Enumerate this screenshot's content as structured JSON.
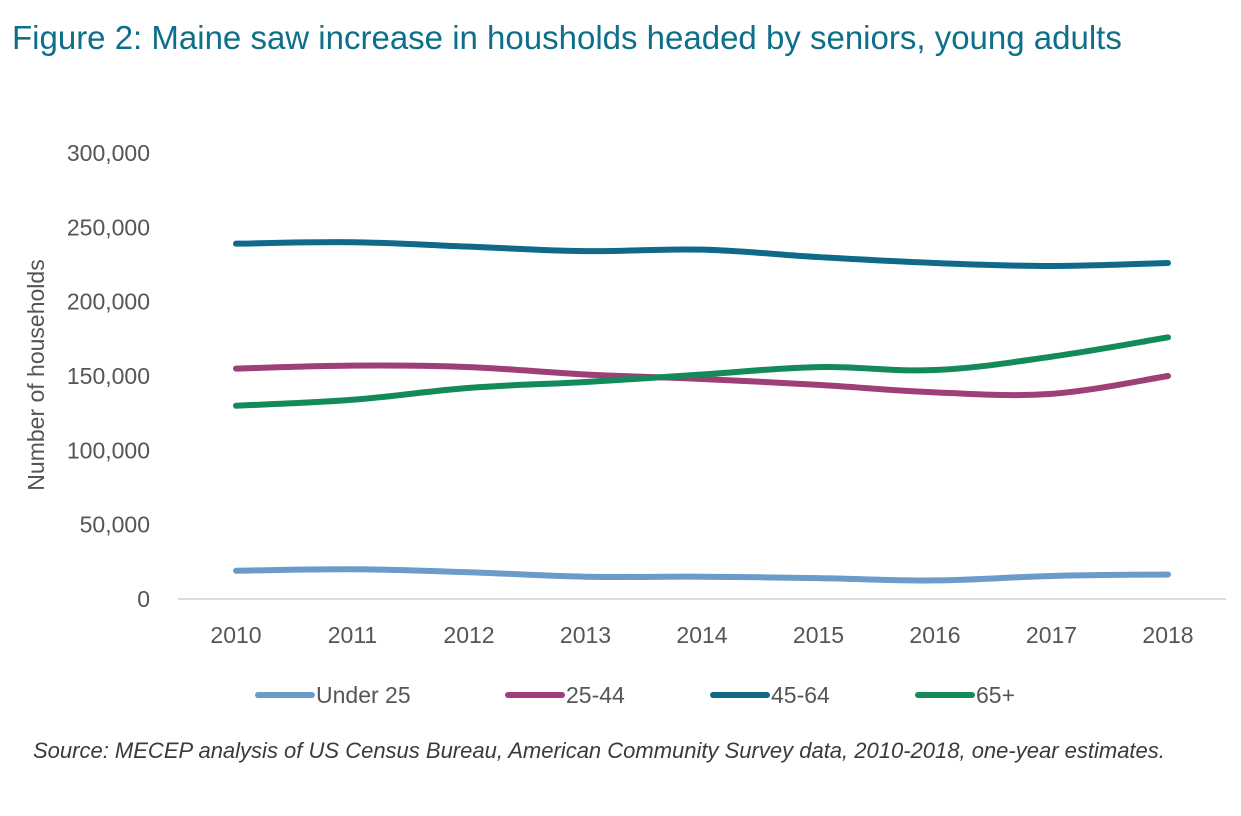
{
  "title": "Figure 2: Maine saw increase in housholds headed by seniors, young adults",
  "source": "Source: MECEP analysis of US Census Bureau, American Community Survey data, 2010-2018, one-year estimates.",
  "chart_data": {
    "type": "line",
    "title": "Figure 2: Maine saw increase in housholds headed by seniors, young adults",
    "xlabel": "",
    "ylabel": "Number of households",
    "ylim": [
      0,
      300000
    ],
    "yticks": [
      0,
      50000,
      100000,
      150000,
      200000,
      250000,
      300000
    ],
    "ytick_labels": [
      "0",
      "50,000",
      "100,000",
      "150,000",
      "200,000",
      "250,000",
      "300,000"
    ],
    "categories": [
      "2010",
      "2011",
      "2012",
      "2013",
      "2014",
      "2015",
      "2016",
      "2017",
      "2018"
    ],
    "grid": false,
    "legend_position": "bottom",
    "series": [
      {
        "name": "Under 25",
        "color": "#6a9bc9",
        "values": [
          19000,
          20000,
          18000,
          15000,
          15000,
          14000,
          12500,
          15500,
          16500
        ]
      },
      {
        "name": "25-44",
        "color": "#9e3f78",
        "values": [
          155000,
          157000,
          156000,
          151000,
          148000,
          144000,
          139000,
          138000,
          150000
        ]
      },
      {
        "name": "45-64",
        "color": "#0f6a8a",
        "values": [
          239000,
          240000,
          237000,
          234000,
          235000,
          230000,
          226000,
          224000,
          226000
        ]
      },
      {
        "name": "65+",
        "color": "#128a5a",
        "values": [
          130000,
          134000,
          142000,
          146000,
          151000,
          156000,
          154000,
          163000,
          176000
        ]
      }
    ]
  }
}
